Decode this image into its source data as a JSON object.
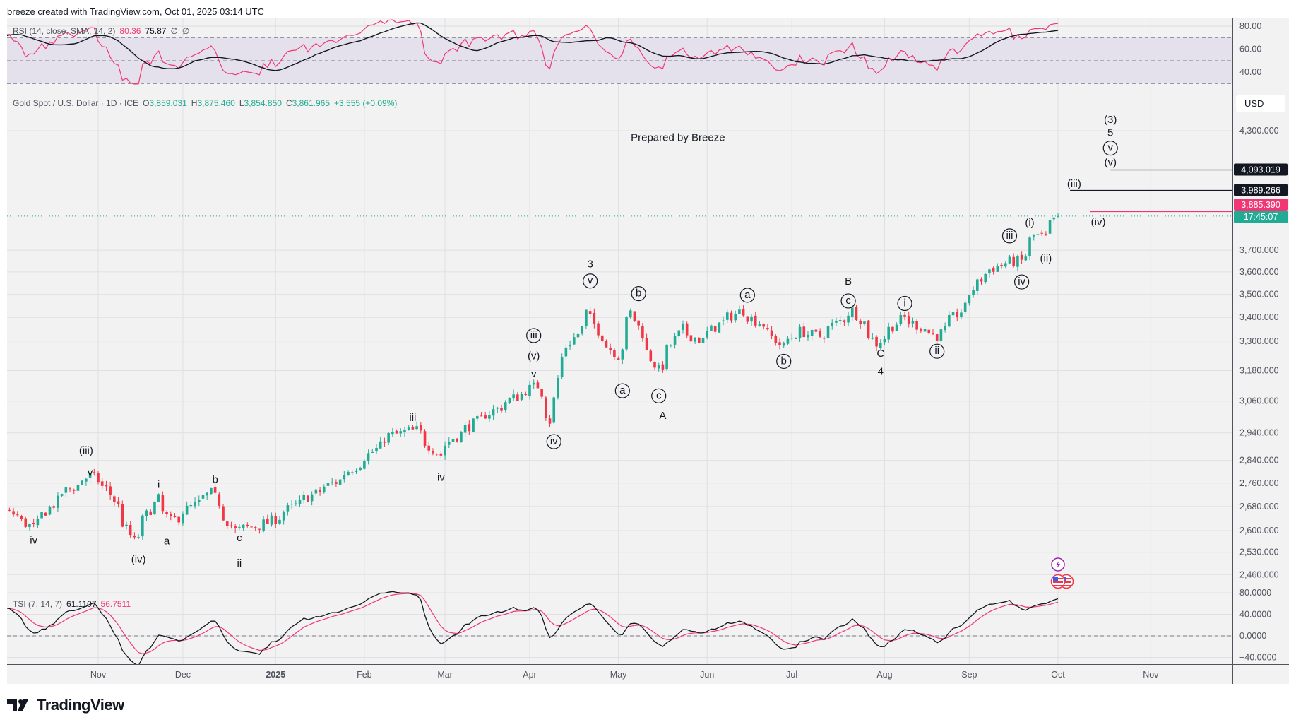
{
  "header": {
    "attribution": "breeze created with TradingView.com, Oct 01, 2025 03:14 UTC"
  },
  "rsi": {
    "title": "RSI (14, close, SMA, 14, 2)",
    "value": "80.36",
    "sma": "75.87",
    "extra1": "∅",
    "extra2": "∅",
    "ticks": [
      "80.00",
      "60.00",
      "40.00"
    ],
    "tick_values": [
      80,
      60,
      40
    ],
    "bands": [
      70,
      50,
      30
    ]
  },
  "main": {
    "symbol": "Gold Spot / U.S. Dollar · 1D · ICE",
    "o_label": "O",
    "o": "3,859.031",
    "h_label": "H",
    "h": "3,875.460",
    "l_label": "L",
    "l": "3,854.850",
    "c_label": "C",
    "c": "3,861.965",
    "change": "+3.555 (+0.09%)",
    "currency": "USD",
    "annotation": "Prepared by Breeze",
    "countdown": "17:45:07"
  },
  "tsi": {
    "title": "TSI (7, 14, 7)",
    "value": "61.1107",
    "signal": "56.7511",
    "ticks": [
      "80.0000",
      "40.0000",
      "0.0000",
      "−40.0000"
    ],
    "tick_values": [
      80,
      40,
      0,
      -40
    ]
  },
  "time_axis": [
    {
      "label": "Nov",
      "date": "2024-11-01",
      "bold": false
    },
    {
      "label": "Dec",
      "date": "2024-12-02",
      "bold": false
    },
    {
      "label": "2025",
      "date": "2025-01-02",
      "bold": true
    },
    {
      "label": "Feb",
      "date": "2025-02-03",
      "bold": false
    },
    {
      "label": "Mar",
      "date": "2025-03-03",
      "bold": false
    },
    {
      "label": "Apr",
      "date": "2025-04-01",
      "bold": false
    },
    {
      "label": "May",
      "date": "2025-05-01",
      "bold": false
    },
    {
      "label": "Jun",
      "date": "2025-06-02",
      "bold": false
    },
    {
      "label": "Jul",
      "date": "2025-07-01",
      "bold": false
    },
    {
      "label": "Aug",
      "date": "2025-08-01",
      "bold": false
    },
    {
      "label": "Sep",
      "date": "2025-09-01",
      "bold": false
    },
    {
      "label": "Oct",
      "date": "2025-10-01",
      "bold": false
    },
    {
      "label": "Nov",
      "date": "2025-11-03",
      "bold": false
    }
  ],
  "branding": {
    "logo_text": "TradingView"
  },
  "colors": {
    "up": "#22ab94",
    "down": "#f23645",
    "rsi": "#f23673",
    "sma": "#131722",
    "tsi": "#131722",
    "signal": "#f23673",
    "band": "#e5e1ec",
    "pane": "#f2f2f2",
    "grid": "#e0e0e3"
  },
  "chart_data": {
    "type": "candlestick",
    "title": "Gold Spot / U.S. Dollar · 1D",
    "price_ticks": [
      4300,
      3700,
      3600,
      3500,
      3400,
      3300,
      3180,
      3060,
      2940,
      2840,
      2760,
      2680,
      2600,
      2530,
      2460
    ],
    "price_tick_labels": [
      "4,300.000",
      "3,700.000",
      "3,600.000",
      "3,500.000",
      "3,400.000",
      "3,300.000",
      "3,180.000",
      "3,060.000",
      "2,940.000",
      "2,840.000",
      "2,760.000",
      "2,680.000",
      "2,600.000",
      "2,530.000",
      "2,460.000"
    ],
    "last_bar": {
      "date": "2025-10-01",
      "open": 3859.031,
      "high": 3875.46,
      "low": 3854.85,
      "close": 3861.965
    },
    "close_path": [
      [
        "2024-08-01",
        2440
      ],
      [
        "2024-08-20",
        2510
      ],
      [
        "2024-09-10",
        2515
      ],
      [
        "2024-09-26",
        2670
      ],
      [
        "2024-10-03",
        2655
      ],
      [
        "2024-10-10",
        2610
      ],
      [
        "2024-10-20",
        2720
      ],
      [
        "2024-10-30",
        2785
      ],
      [
        "2024-11-05",
        2740
      ],
      [
        "2024-11-14",
        2565
      ],
      [
        "2024-11-22",
        2705
      ],
      [
        "2024-11-27",
        2630
      ],
      [
        "2024-12-11",
        2725
      ],
      [
        "2024-12-19",
        2600
      ],
      [
        "2024-12-31",
        2625
      ],
      [
        "2025-01-10",
        2690
      ],
      [
        "2025-01-24",
        2770
      ],
      [
        "2025-02-05",
        2870
      ],
      [
        "2025-02-11",
        2930
      ],
      [
        "2025-02-20",
        2950
      ],
      [
        "2025-02-28",
        2860
      ],
      [
        "2025-03-05",
        2920
      ],
      [
        "2025-03-14",
        2990
      ],
      [
        "2025-03-20",
        3030
      ],
      [
        "2025-03-28",
        3085
      ],
      [
        "2025-04-03",
        3120
      ],
      [
        "2025-04-08",
        2985
      ],
      [
        "2025-04-11",
        3230
      ],
      [
        "2025-04-17",
        3330
      ],
      [
        "2025-04-21",
        3420
      ],
      [
        "2025-04-25",
        3320
      ],
      [
        "2025-05-01",
        3240
      ],
      [
        "2025-05-06",
        3420
      ],
      [
        "2025-05-09",
        3330
      ],
      [
        "2025-05-15",
        3180
      ],
      [
        "2025-05-23",
        3350
      ],
      [
        "2025-05-30",
        3300
      ],
      [
        "2025-06-05",
        3370
      ],
      [
        "2025-06-13",
        3430
      ],
      [
        "2025-06-20",
        3370
      ],
      [
        "2025-06-27",
        3275
      ],
      [
        "2025-07-03",
        3340
      ],
      [
        "2025-07-10",
        3320
      ],
      [
        "2025-07-22",
        3430
      ],
      [
        "2025-07-30",
        3290
      ],
      [
        "2025-08-08",
        3400
      ],
      [
        "2025-08-20",
        3320
      ],
      [
        "2025-08-29",
        3440
      ],
      [
        "2025-09-05",
        3590
      ],
      [
        "2025-09-12",
        3640
      ],
      [
        "2025-09-18",
        3650
      ],
      [
        "2025-09-23",
        3770
      ],
      [
        "2025-09-26",
        3760
      ],
      [
        "2025-10-01",
        3861.965
      ]
    ],
    "horizontal_levels": [
      {
        "value": 4093.019,
        "label": "4,093.019",
        "from": "2025-10-20",
        "color": "#131722"
      },
      {
        "value": 3989.266,
        "label": "3,989.266",
        "from": "2025-10-06",
        "color": "#131722"
      },
      {
        "value": 3885.39,
        "label": "3,885.390",
        "from": "2025-10-12",
        "color": "#f23673"
      }
    ],
    "wave_labels": [
      {
        "text": "iv",
        "date": "2024-10-10",
        "price": 2567,
        "circled": false
      },
      {
        "text": "(iii)",
        "date": "2024-10-29",
        "price": 2873,
        "circled": false
      },
      {
        "text": "v",
        "date": "2024-10-30",
        "price": 2795,
        "circled": false
      },
      {
        "text": "(iv)",
        "date": "2024-11-15",
        "price": 2506,
        "circled": false
      },
      {
        "text": "i",
        "date": "2024-11-22",
        "price": 2753,
        "circled": false
      },
      {
        "text": "a",
        "date": "2024-11-26",
        "price": 2564,
        "circled": false
      },
      {
        "text": "b",
        "date": "2024-12-12",
        "price": 2770,
        "circled": false
      },
      {
        "text": "c",
        "date": "2024-12-20",
        "price": 2575,
        "circled": false
      },
      {
        "text": "ii",
        "date": "2024-12-20",
        "price": 2493,
        "circled": false
      },
      {
        "text": "iii",
        "date": "2025-02-19",
        "price": 2994,
        "circled": false
      },
      {
        "text": "iv",
        "date": "2025-02-28",
        "price": 2778,
        "circled": false
      },
      {
        "text": "iii",
        "date": "2025-04-02",
        "price": 3323,
        "circled": true
      },
      {
        "text": "(v)",
        "date": "2025-04-02",
        "price": 3237,
        "circled": false
      },
      {
        "text": "v",
        "date": "2025-04-02",
        "price": 3164,
        "circled": false
      },
      {
        "text": "iv",
        "date": "2025-04-09",
        "price": 2908,
        "circled": true
      },
      {
        "text": "3",
        "date": "2025-04-22",
        "price": 3634,
        "circled": false
      },
      {
        "text": "v",
        "date": "2025-04-22",
        "price": 3559,
        "circled": true
      },
      {
        "text": "a",
        "date": "2025-05-02",
        "price": 3100,
        "circled": true
      },
      {
        "text": "b",
        "date": "2025-05-08",
        "price": 3503,
        "circled": true
      },
      {
        "text": "c",
        "date": "2025-05-15",
        "price": 3080,
        "circled": true
      },
      {
        "text": "A",
        "date": "2025-05-16",
        "price": 3003,
        "circled": false
      },
      {
        "text": "a",
        "date": "2025-06-16",
        "price": 3496,
        "circled": true
      },
      {
        "text": "b",
        "date": "2025-06-27",
        "price": 3217,
        "circled": true
      },
      {
        "text": "B",
        "date": "2025-07-21",
        "price": 3555,
        "circled": false
      },
      {
        "text": "c",
        "date": "2025-07-21",
        "price": 3471,
        "circled": true
      },
      {
        "text": "C",
        "date": "2025-07-31",
        "price": 3247,
        "circled": false
      },
      {
        "text": "4",
        "date": "2025-07-31",
        "price": 3174,
        "circled": false
      },
      {
        "text": "i",
        "date": "2025-08-08",
        "price": 3460,
        "circled": true
      },
      {
        "text": "ii",
        "date": "2025-08-20",
        "price": 3258,
        "circled": true
      },
      {
        "text": "iii",
        "date": "2025-09-15",
        "price": 3767,
        "circled": true
      },
      {
        "text": "iv",
        "date": "2025-09-18",
        "price": 3555,
        "circled": true
      },
      {
        "text": "(i)",
        "date": "2025-09-22",
        "price": 3827,
        "circled": false
      },
      {
        "text": "(ii)",
        "date": "2025-09-26",
        "price": 3659,
        "circled": false
      },
      {
        "text": "(iii)",
        "date": "2025-10-07",
        "price": 4019,
        "circled": false
      },
      {
        "text": "(iv)",
        "date": "2025-10-15",
        "price": 3831,
        "circled": false
      },
      {
        "text": "(v)",
        "date": "2025-10-20",
        "price": 4129,
        "circled": false
      },
      {
        "text": "v",
        "date": "2025-10-20",
        "price": 4207,
        "circled": true
      },
      {
        "text": "5",
        "date": "2025-10-20",
        "price": 4287,
        "circled": false
      },
      {
        "text": "(3)",
        "date": "2025-10-20",
        "price": 4358,
        "circled": false
      }
    ]
  }
}
